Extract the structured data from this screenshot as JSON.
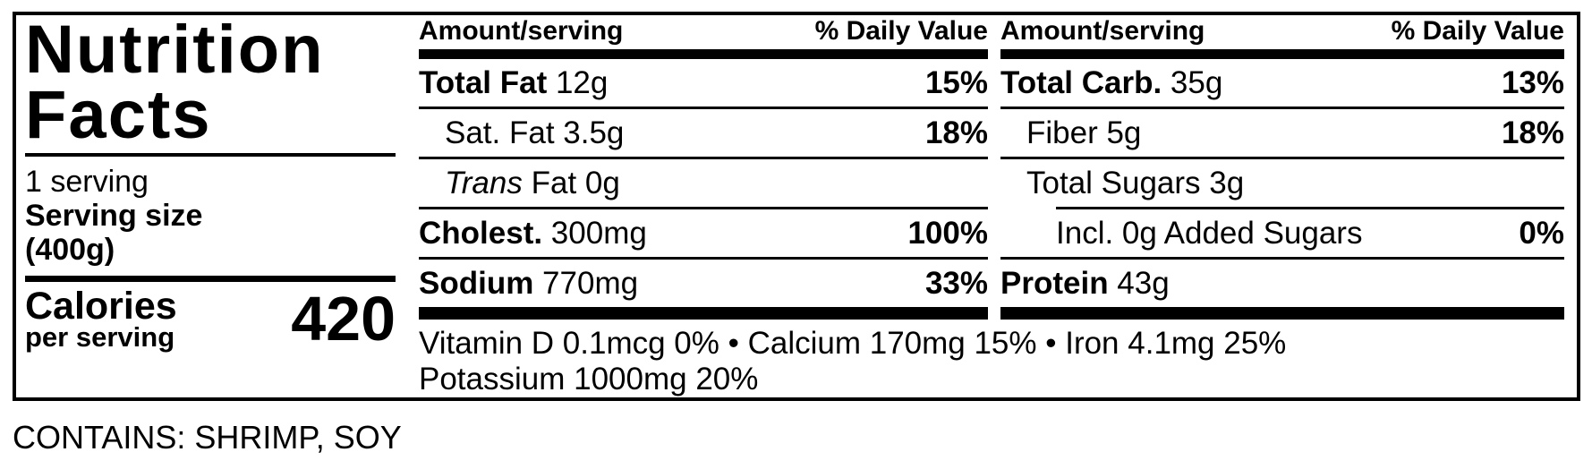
{
  "label": {
    "title_line1": "Nutrition",
    "title_line2": "Facts",
    "servings_per_container": "1 serving",
    "serving_size_label": "Serving size",
    "serving_size_value": "(400g)",
    "calories_label": "Calories",
    "calories_sublabel": "per serving",
    "calories_value": "420"
  },
  "columns": [
    {
      "header_amount": "Amount/serving",
      "header_dv": "% Daily Value",
      "rows": [
        {
          "italic": "",
          "bold": "Total Fat",
          "text": " 12g",
          "dv": "15%"
        },
        {
          "italic": "",
          "bold": "",
          "text": "Sat. Fat 3.5g",
          "dv": "18%"
        },
        {
          "italic": "Trans",
          "bold": "",
          "text": " Fat 0g",
          "dv": ""
        },
        {
          "italic": "",
          "bold": "Cholest.",
          "text": " 300mg",
          "dv": "100%"
        },
        {
          "italic": "",
          "bold": "Sodium",
          "text": " 770mg",
          "dv": "33%"
        }
      ]
    },
    {
      "header_amount": "Amount/serving",
      "header_dv": "% Daily Value",
      "rows": [
        {
          "italic": "",
          "bold": "Total Carb.",
          "text": " 35g",
          "dv": "13%"
        },
        {
          "italic": "",
          "bold": "",
          "text": "Fiber 5g",
          "dv": "18%"
        },
        {
          "italic": "",
          "bold": "",
          "text": "Total Sugars 3g",
          "dv": ""
        },
        {
          "italic": "",
          "bold": "",
          "text": "Incl. 0g Added Sugars",
          "dv": "0%"
        },
        {
          "italic": "",
          "bold": "Protein",
          "text": " 43g",
          "dv": ""
        }
      ]
    }
  ],
  "footnote": {
    "line1": "Vitamin D 0.1mcg 0% • Calcium 170mg 15% • Iron 4.1mg 25%",
    "line2": "Potassium 1000mg 20%"
  },
  "allergen_statement": "CONTAINS: SHRIMP, SOY",
  "colors": {
    "ink": "#000000",
    "paper": "#ffffff"
  }
}
